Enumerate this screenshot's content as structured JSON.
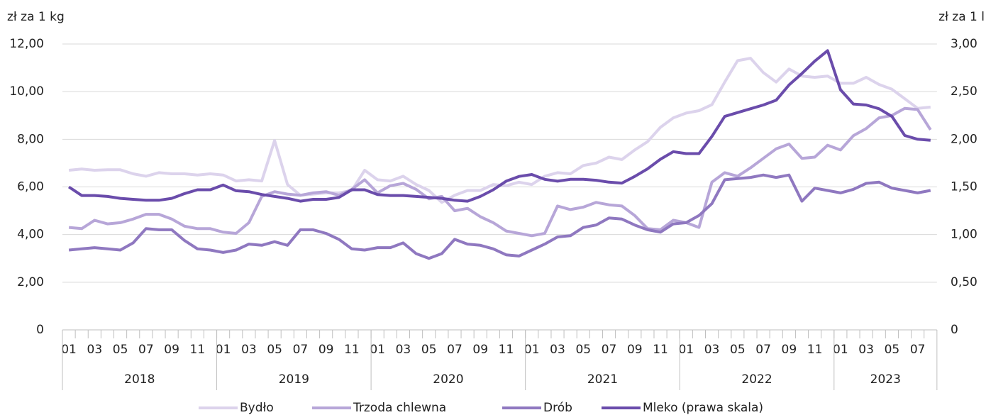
{
  "chart_data": {
    "type": "line",
    "y_label": "zł za 1 kg",
    "y2_label": "zł za 1 l",
    "categories": [
      "01",
      null,
      "03",
      null,
      "05",
      null,
      "07",
      null,
      "09",
      null,
      "11",
      null,
      "01",
      null,
      "03",
      null,
      "05",
      null,
      "07",
      null,
      "09",
      null,
      "11",
      null,
      "01",
      null,
      "03",
      null,
      "05",
      null,
      "07",
      null,
      "09",
      null,
      "11",
      null,
      "01",
      null,
      "03",
      null,
      "05",
      null,
      "07",
      null,
      "09",
      null,
      "11",
      null,
      "01",
      null,
      "03",
      null,
      "05",
      null,
      "07",
      null,
      "09",
      null,
      "11",
      null,
      "01",
      null,
      "03",
      null,
      "05",
      null,
      "07",
      null
    ],
    "years": [
      "2018",
      "2019",
      "2020",
      "2021",
      "2022",
      "2023"
    ],
    "series": [
      {
        "name": "Bydło",
        "color": "#dcd3ec",
        "values": [
          6.7,
          6.75,
          6.7,
          6.72,
          6.72,
          6.55,
          6.45,
          6.6,
          6.55,
          6.55,
          6.5,
          6.55,
          6.5,
          6.25,
          6.3,
          6.25,
          7.95,
          6.1,
          5.65,
          5.7,
          5.75,
          5.75,
          5.85,
          6.7,
          6.3,
          6.25,
          6.45,
          6.1,
          5.85,
          5.35,
          5.65,
          5.85,
          5.85,
          6.1,
          6.05,
          6.2,
          6.1,
          6.45,
          6.6,
          6.55,
          6.9,
          7.0,
          7.25,
          7.15,
          7.55,
          7.9,
          8.5,
          8.9,
          9.1,
          9.2,
          9.45,
          10.4,
          11.3,
          11.4,
          10.8,
          10.4,
          10.95,
          10.65,
          10.6,
          10.65,
          10.35,
          10.35,
          10.6,
          10.3,
          10.1,
          9.7,
          9.3,
          9.35
        ]
      },
      {
        "name": "Trzoda chlewna",
        "color": "#b7a6d8",
        "values": [
          4.3,
          4.25,
          4.6,
          4.45,
          4.5,
          4.65,
          4.85,
          4.85,
          4.65,
          4.35,
          4.25,
          4.25,
          4.1,
          4.05,
          4.5,
          5.6,
          5.8,
          5.7,
          5.65,
          5.75,
          5.8,
          5.65,
          5.9,
          6.3,
          5.75,
          6.05,
          6.15,
          5.9,
          5.5,
          5.6,
          5.0,
          5.1,
          4.75,
          4.5,
          4.15,
          4.05,
          3.95,
          4.05,
          5.2,
          5.05,
          5.15,
          5.35,
          5.25,
          5.2,
          4.8,
          4.25,
          4.2,
          4.6,
          4.5,
          4.3,
          6.2,
          6.6,
          6.45,
          6.8,
          7.2,
          7.6,
          7.8,
          7.2,
          7.25,
          7.75,
          7.55,
          8.15,
          8.45,
          8.9,
          9.0,
          9.3,
          9.25,
          8.4
        ]
      },
      {
        "name": "Drób",
        "color": "#8f78c0",
        "values": [
          3.35,
          3.4,
          3.45,
          3.4,
          3.35,
          3.65,
          4.25,
          4.2,
          4.2,
          3.75,
          3.4,
          3.35,
          3.25,
          3.35,
          3.6,
          3.55,
          3.7,
          3.55,
          4.2,
          4.2,
          4.05,
          3.8,
          3.4,
          3.35,
          3.45,
          3.45,
          3.65,
          3.2,
          3.0,
          3.2,
          3.8,
          3.6,
          3.55,
          3.4,
          3.15,
          3.1,
          3.35,
          3.6,
          3.9,
          3.95,
          4.3,
          4.4,
          4.7,
          4.65,
          4.4,
          4.2,
          4.1,
          4.45,
          4.5,
          4.8,
          5.3,
          6.3,
          6.35,
          6.4,
          6.5,
          6.4,
          6.5,
          5.4,
          5.95,
          5.85,
          5.75,
          5.9,
          6.15,
          6.2,
          5.95,
          5.85,
          5.75,
          5.85
        ]
      },
      {
        "name": "Mleko (prawa skala)",
        "color": "#6a4cab",
        "axis": "y2",
        "values": [
          1.5,
          1.41,
          1.41,
          1.4,
          1.38,
          1.37,
          1.36,
          1.36,
          1.38,
          1.43,
          1.47,
          1.47,
          1.52,
          1.46,
          1.45,
          1.42,
          1.4,
          1.38,
          1.35,
          1.37,
          1.37,
          1.39,
          1.47,
          1.47,
          1.42,
          1.41,
          1.41,
          1.4,
          1.39,
          1.38,
          1.36,
          1.35,
          1.4,
          1.47,
          1.56,
          1.61,
          1.63,
          1.58,
          1.56,
          1.58,
          1.58,
          1.57,
          1.55,
          1.54,
          1.61,
          1.69,
          1.79,
          1.87,
          1.85,
          1.85,
          2.03,
          2.24,
          2.28,
          2.32,
          2.36,
          2.41,
          2.57,
          2.69,
          2.82,
          2.93,
          2.52,
          2.37,
          2.36,
          2.32,
          2.24,
          2.04,
          2.0,
          1.99
        ]
      }
    ],
    "ylim": [
      0,
      12
    ],
    "yticks": [
      0,
      {
        "value": 2,
        "label": "2,00"
      },
      {
        "value": 4,
        "label": "4,00"
      },
      {
        "value": 6,
        "label": "6,00"
      },
      {
        "value": 8,
        "label": "8,00"
      },
      {
        "value": 10,
        "label": "10,00"
      },
      {
        "value": 12,
        "label": "12,00"
      }
    ],
    "y2lim": [
      0,
      3
    ],
    "y2ticks": [
      0,
      {
        "value": 0.5,
        "label": "0,50"
      },
      {
        "value": 1,
        "label": "1,00"
      },
      {
        "value": 1.5,
        "label": "1,50"
      },
      {
        "value": 2,
        "label": "2,00"
      },
      {
        "value": 2.5,
        "label": "2,50"
      },
      {
        "value": 3,
        "label": "3,00"
      }
    ],
    "grid": true
  }
}
